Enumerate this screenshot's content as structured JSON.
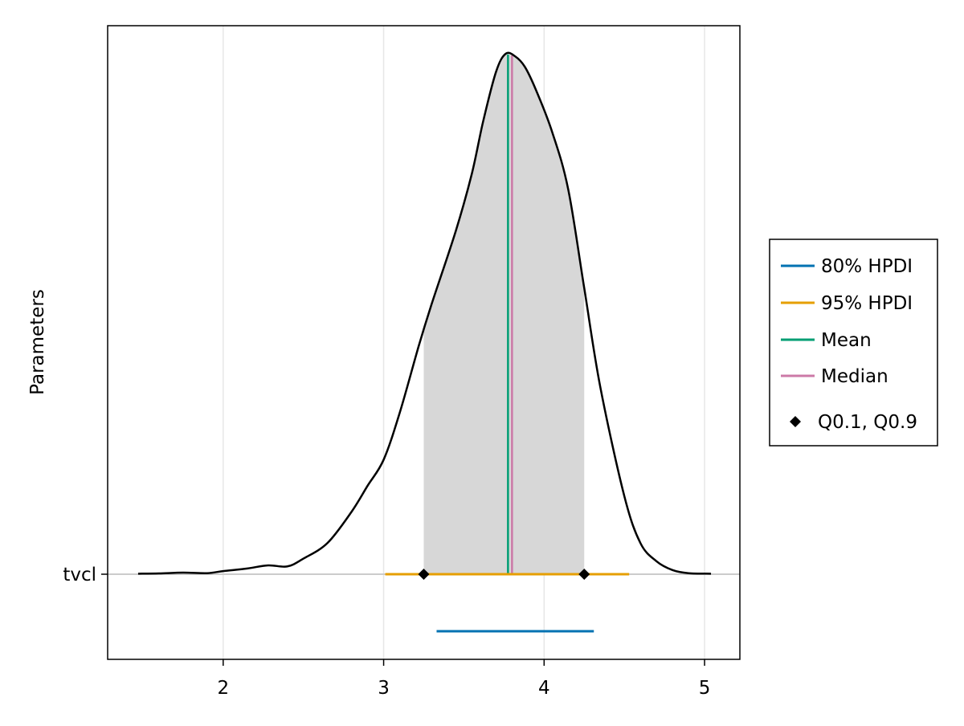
{
  "chart_data": {
    "type": "area",
    "ylabel": "Parameters",
    "parameter": "tvcl",
    "x_ticks": [
      2,
      3,
      4,
      5
    ],
    "xlim": [
      1.28,
      5.22
    ],
    "grid": true,
    "legend_placement": "right",
    "density_curve": [
      [
        1.47,
        0.001
      ],
      [
        1.6,
        0.0015
      ],
      [
        1.75,
        0.003
      ],
      [
        1.9,
        0.002
      ],
      [
        2.0,
        0.006
      ],
      [
        2.15,
        0.011
      ],
      [
        2.28,
        0.017
      ],
      [
        2.4,
        0.015
      ],
      [
        2.5,
        0.03
      ],
      [
        2.65,
        0.06
      ],
      [
        2.8,
        0.12
      ],
      [
        2.9,
        0.17
      ],
      [
        3.0,
        0.22
      ],
      [
        3.1,
        0.31
      ],
      [
        3.22,
        0.44
      ],
      [
        3.3,
        0.52
      ],
      [
        3.45,
        0.66
      ],
      [
        3.55,
        0.77
      ],
      [
        3.62,
        0.87
      ],
      [
        3.7,
        0.965
      ],
      [
        3.76,
        1.0
      ],
      [
        3.82,
        0.995
      ],
      [
        3.88,
        0.975
      ],
      [
        3.95,
        0.93
      ],
      [
        4.05,
        0.85
      ],
      [
        4.15,
        0.74
      ],
      [
        4.25,
        0.55
      ],
      [
        4.35,
        0.36
      ],
      [
        4.5,
        0.15
      ],
      [
        4.6,
        0.06
      ],
      [
        4.7,
        0.025
      ],
      [
        4.8,
        0.008
      ],
      [
        4.9,
        0.002
      ],
      [
        5.04,
        0.001
      ]
    ],
    "shaded_region": [
      3.25,
      4.25
    ],
    "mean": 3.775,
    "median": 3.8,
    "quantiles": [
      3.25,
      4.25
    ],
    "hpdi_95": [
      3.01,
      4.53
    ],
    "hpdi_80": [
      3.33,
      4.31
    ],
    "legend": [
      {
        "label": "80% HPDI",
        "color": "#0072b2",
        "marker": "line"
      },
      {
        "label": "95% HPDI",
        "color": "#e69f00",
        "marker": "line"
      },
      {
        "label": "Mean",
        "color": "#009e73",
        "marker": "line"
      },
      {
        "label": "Median",
        "color": "#cc79a7",
        "marker": "line"
      },
      {
        "label": "Q0.1, Q0.9",
        "color": "#000000",
        "marker": "diamond"
      }
    ],
    "colors": {
      "density_line": "#000000",
      "shaded_fill": "#d7d7d7",
      "grid": "#e6e6e6",
      "baseline": "#cccccc"
    }
  }
}
